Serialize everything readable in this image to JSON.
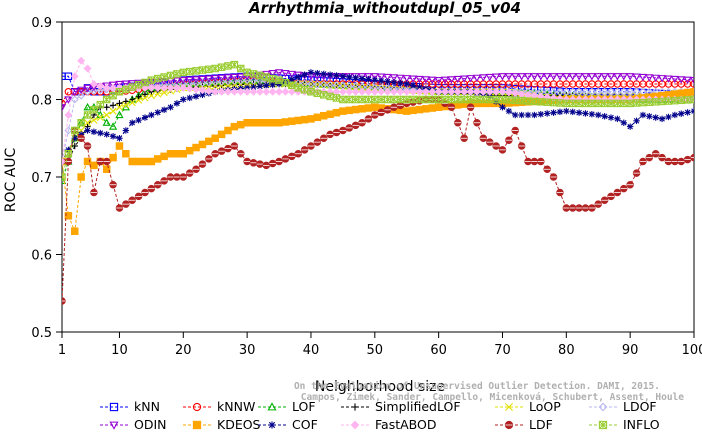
{
  "chart_data": {
    "type": "line",
    "title": "Arrhythmia_withoutdupl_05_v04",
    "xlabel": "Neighborhood size",
    "ylabel": "ROC AUC",
    "xlim": [
      1,
      100
    ],
    "ylim": [
      0.5,
      0.9
    ],
    "xticks": [
      1,
      10,
      20,
      30,
      40,
      50,
      60,
      70,
      80,
      90,
      100
    ],
    "yticks": [
      0.5,
      0.6,
      0.7,
      0.8,
      0.9
    ],
    "watermark": {
      "line1": "Campos, Zimek, Sander, Campello, Micenková, Schubert, Assent, Houle",
      "line2": "On the Evaluation of Unsupervised Outlier Detection. DAMI, 2015."
    },
    "series": [
      {
        "name": "kNN",
        "color": "#0000ff",
        "marker": "square",
        "points": [
          [
            1,
            0.83
          ],
          [
            2,
            0.83
          ],
          [
            3,
            0.81
          ],
          [
            4,
            0.81
          ],
          [
            5,
            0.815
          ],
          [
            6,
            0.81
          ],
          [
            8,
            0.81
          ],
          [
            10,
            0.815
          ],
          [
            15,
            0.82
          ],
          [
            20,
            0.825
          ],
          [
            30,
            0.83
          ],
          [
            40,
            0.825
          ],
          [
            50,
            0.82
          ],
          [
            60,
            0.815
          ],
          [
            70,
            0.815
          ],
          [
            80,
            0.81
          ],
          [
            90,
            0.81
          ],
          [
            100,
            0.805
          ]
        ]
      },
      {
        "name": "kNNW",
        "color": "#ff0000",
        "marker": "circle",
        "points": [
          [
            1,
            0.795
          ],
          [
            2,
            0.81
          ],
          [
            3,
            0.81
          ],
          [
            5,
            0.81
          ],
          [
            10,
            0.81
          ],
          [
            15,
            0.815
          ],
          [
            20,
            0.82
          ],
          [
            30,
            0.825
          ],
          [
            40,
            0.82
          ],
          [
            50,
            0.82
          ],
          [
            60,
            0.82
          ],
          [
            70,
            0.82
          ],
          [
            80,
            0.82
          ],
          [
            90,
            0.82
          ],
          [
            100,
            0.82
          ]
        ]
      },
      {
        "name": "LOF",
        "color": "#00b000",
        "marker": "triangle",
        "points": [
          [
            1,
            0.695
          ],
          [
            2,
            0.72
          ],
          [
            3,
            0.75
          ],
          [
            4,
            0.77
          ],
          [
            5,
            0.79
          ],
          [
            6,
            0.79
          ],
          [
            8,
            0.77
          ],
          [
            9,
            0.765
          ],
          [
            10,
            0.78
          ],
          [
            12,
            0.8
          ],
          [
            15,
            0.815
          ],
          [
            20,
            0.82
          ],
          [
            30,
            0.825
          ],
          [
            40,
            0.82
          ],
          [
            50,
            0.815
          ],
          [
            60,
            0.81
          ],
          [
            70,
            0.81
          ],
          [
            80,
            0.805
          ],
          [
            90,
            0.8
          ],
          [
            100,
            0.8
          ]
        ]
      },
      {
        "name": "SimplifiedLOF",
        "color": "#000000",
        "marker": "plus",
        "points": [
          [
            1,
            0.72
          ],
          [
            2,
            0.72
          ],
          [
            3,
            0.74
          ],
          [
            4,
            0.75
          ],
          [
            5,
            0.765
          ],
          [
            6,
            0.78
          ],
          [
            7,
            0.79
          ],
          [
            8,
            0.79
          ],
          [
            10,
            0.795
          ],
          [
            12,
            0.8
          ],
          [
            15,
            0.81
          ],
          [
            20,
            0.815
          ],
          [
            30,
            0.82
          ],
          [
            40,
            0.82
          ],
          [
            50,
            0.815
          ],
          [
            60,
            0.81
          ],
          [
            70,
            0.805
          ],
          [
            80,
            0.805
          ],
          [
            90,
            0.8
          ],
          [
            100,
            0.8
          ]
        ]
      },
      {
        "name": "LoOP",
        "color": "#e0e000",
        "marker": "x",
        "points": [
          [
            1,
            0.72
          ],
          [
            2,
            0.73
          ],
          [
            3,
            0.75
          ],
          [
            5,
            0.77
          ],
          [
            8,
            0.78
          ],
          [
            10,
            0.79
          ],
          [
            15,
            0.805
          ],
          [
            20,
            0.815
          ],
          [
            30,
            0.82
          ],
          [
            40,
            0.82
          ],
          [
            50,
            0.815
          ],
          [
            60,
            0.81
          ],
          [
            70,
            0.81
          ],
          [
            80,
            0.805
          ],
          [
            90,
            0.805
          ],
          [
            100,
            0.8
          ]
        ]
      },
      {
        "name": "LDOF",
        "color": "#b8b8f0",
        "marker": "diamond",
        "points": [
          [
            1,
            0.72
          ],
          [
            2,
            0.76
          ],
          [
            3,
            0.8
          ],
          [
            5,
            0.81
          ],
          [
            10,
            0.815
          ],
          [
            20,
            0.82
          ],
          [
            30,
            0.825
          ],
          [
            40,
            0.82
          ],
          [
            50,
            0.815
          ],
          [
            60,
            0.81
          ],
          [
            70,
            0.81
          ],
          [
            80,
            0.81
          ],
          [
            90,
            0.81
          ],
          [
            100,
            0.81
          ]
        ]
      },
      {
        "name": "ODIN",
        "color": "#9400d3",
        "marker": "triangle-down",
        "points": [
          [
            1,
            0.79
          ],
          [
            3,
            0.81
          ],
          [
            5,
            0.815
          ],
          [
            10,
            0.82
          ],
          [
            20,
            0.825
          ],
          [
            30,
            0.83
          ],
          [
            35,
            0.835
          ],
          [
            40,
            0.83
          ],
          [
            50,
            0.83
          ],
          [
            60,
            0.825
          ],
          [
            70,
            0.83
          ],
          [
            80,
            0.83
          ],
          [
            90,
            0.83
          ],
          [
            100,
            0.825
          ]
        ]
      },
      {
        "name": "KDEOS",
        "color": "#ffa500",
        "marker": "square-filled",
        "points": [
          [
            1,
            0.72
          ],
          [
            2,
            0.65
          ],
          [
            3,
            0.63
          ],
          [
            4,
            0.7
          ],
          [
            5,
            0.72
          ],
          [
            6,
            0.715
          ],
          [
            7,
            0.72
          ],
          [
            8,
            0.71
          ],
          [
            10,
            0.74
          ],
          [
            12,
            0.72
          ],
          [
            15,
            0.72
          ],
          [
            18,
            0.73
          ],
          [
            20,
            0.73
          ],
          [
            25,
            0.75
          ],
          [
            28,
            0.765
          ],
          [
            30,
            0.77
          ],
          [
            35,
            0.77
          ],
          [
            40,
            0.775
          ],
          [
            45,
            0.785
          ],
          [
            50,
            0.79
          ],
          [
            55,
            0.785
          ],
          [
            60,
            0.79
          ],
          [
            65,
            0.795
          ],
          [
            70,
            0.795
          ],
          [
            80,
            0.8
          ],
          [
            90,
            0.8
          ],
          [
            100,
            0.81
          ]
        ]
      },
      {
        "name": "COF",
        "color": "#00008b",
        "marker": "star",
        "points": [
          [
            1,
            0.72
          ],
          [
            3,
            0.75
          ],
          [
            5,
            0.76
          ],
          [
            8,
            0.755
          ],
          [
            10,
            0.75
          ],
          [
            12,
            0.77
          ],
          [
            15,
            0.78
          ],
          [
            18,
            0.79
          ],
          [
            20,
            0.8
          ],
          [
            25,
            0.81
          ],
          [
            30,
            0.815
          ],
          [
            35,
            0.82
          ],
          [
            40,
            0.835
          ],
          [
            45,
            0.83
          ],
          [
            50,
            0.825
          ],
          [
            55,
            0.82
          ],
          [
            60,
            0.81
          ],
          [
            65,
            0.81
          ],
          [
            68,
            0.805
          ],
          [
            70,
            0.79
          ],
          [
            72,
            0.78
          ],
          [
            75,
            0.78
          ],
          [
            80,
            0.785
          ],
          [
            85,
            0.78
          ],
          [
            88,
            0.775
          ],
          [
            90,
            0.765
          ],
          [
            92,
            0.78
          ],
          [
            95,
            0.775
          ],
          [
            97,
            0.78
          ],
          [
            100,
            0.785
          ]
        ]
      },
      {
        "name": "FastABOD",
        "color": "#ffb6f0",
        "marker": "diamond-filled",
        "points": [
          [
            1,
            0.72
          ],
          [
            2,
            0.78
          ],
          [
            3,
            0.83
          ],
          [
            4,
            0.85
          ],
          [
            5,
            0.84
          ],
          [
            6,
            0.82
          ],
          [
            8,
            0.815
          ],
          [
            10,
            0.815
          ],
          [
            15,
            0.815
          ],
          [
            20,
            0.815
          ],
          [
            25,
            0.81
          ],
          [
            30,
            0.81
          ],
          [
            40,
            0.81
          ],
          [
            50,
            0.81
          ],
          [
            60,
            0.81
          ],
          [
            70,
            0.81
          ],
          [
            80,
            0.8
          ],
          [
            90,
            0.8
          ],
          [
            100,
            0.8
          ]
        ]
      },
      {
        "name": "LDF",
        "color": "#b22222",
        "marker": "circle-filled",
        "points": [
          [
            1,
            0.54
          ],
          [
            2,
            0.72
          ],
          [
            3,
            0.76
          ],
          [
            4,
            0.75
          ],
          [
            5,
            0.74
          ],
          [
            6,
            0.68
          ],
          [
            7,
            0.72
          ],
          [
            8,
            0.72
          ],
          [
            9,
            0.69
          ],
          [
            10,
            0.66
          ],
          [
            12,
            0.67
          ],
          [
            14,
            0.68
          ],
          [
            16,
            0.69
          ],
          [
            18,
            0.7
          ],
          [
            20,
            0.7
          ],
          [
            22,
            0.71
          ],
          [
            25,
            0.73
          ],
          [
            28,
            0.74
          ],
          [
            30,
            0.72
          ],
          [
            33,
            0.715
          ],
          [
            35,
            0.72
          ],
          [
            38,
            0.73
          ],
          [
            40,
            0.74
          ],
          [
            43,
            0.755
          ],
          [
            45,
            0.76
          ],
          [
            48,
            0.77
          ],
          [
            50,
            0.78
          ],
          [
            53,
            0.79
          ],
          [
            55,
            0.795
          ],
          [
            58,
            0.8
          ],
          [
            60,
            0.8
          ],
          [
            62,
            0.79
          ],
          [
            64,
            0.75
          ],
          [
            65,
            0.79
          ],
          [
            67,
            0.75
          ],
          [
            69,
            0.74
          ],
          [
            70,
            0.735
          ],
          [
            72,
            0.76
          ],
          [
            74,
            0.72
          ],
          [
            76,
            0.72
          ],
          [
            78,
            0.7
          ],
          [
            80,
            0.66
          ],
          [
            82,
            0.66
          ],
          [
            84,
            0.66
          ],
          [
            86,
            0.67
          ],
          [
            88,
            0.68
          ],
          [
            90,
            0.69
          ],
          [
            92,
            0.72
          ],
          [
            94,
            0.73
          ],
          [
            96,
            0.72
          ],
          [
            98,
            0.72
          ],
          [
            100,
            0.725
          ]
        ]
      },
      {
        "name": "INFLO",
        "color": "#9acd32",
        "marker": "asterisk-square",
        "points": [
          [
            1,
            0.7
          ],
          [
            2,
            0.73
          ],
          [
            3,
            0.76
          ],
          [
            5,
            0.78
          ],
          [
            8,
            0.8
          ],
          [
            10,
            0.81
          ],
          [
            15,
            0.825
          ],
          [
            20,
            0.835
          ],
          [
            25,
            0.84
          ],
          [
            28,
            0.845
          ],
          [
            30,
            0.835
          ],
          [
            35,
            0.825
          ],
          [
            38,
            0.815
          ],
          [
            40,
            0.81
          ],
          [
            45,
            0.8
          ],
          [
            50,
            0.8
          ],
          [
            60,
            0.8
          ],
          [
            70,
            0.8
          ],
          [
            80,
            0.795
          ],
          [
            90,
            0.795
          ],
          [
            100,
            0.8
          ]
        ]
      }
    ]
  }
}
